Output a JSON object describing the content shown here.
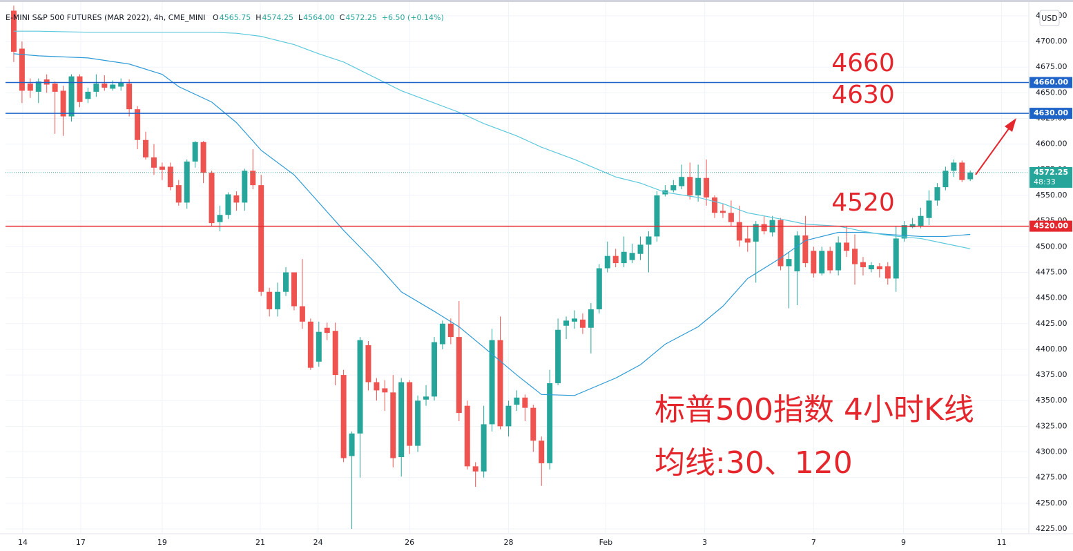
{
  "chart_data": {
    "type": "candlestick",
    "symbol": "E-MINI S&P 500 FUTURES (MAR 2022), 4h, CME_MINI",
    "ohlc_keys": [
      "O",
      "H",
      "L",
      "C"
    ],
    "last_value_labels": [
      "4565.75",
      "4574.25",
      "4564.00",
      "4572.25"
    ],
    "change": "+6.50 (+0.14%)",
    "currency": "USD",
    "countdown": "48:33",
    "up_color": "#26a69a",
    "down_color": "#ef5350",
    "grid": true,
    "xlim": [
      -1.0,
      123.1
    ],
    "ylim": [
      4220.3,
      4738.4
    ],
    "xticks": [
      {
        "value": 1.09,
        "label": "14"
      },
      {
        "value": 8.12,
        "label": "17"
      },
      {
        "value": 18.0,
        "label": "19"
      },
      {
        "value": 29.9,
        "label": "21"
      },
      {
        "value": 36.9,
        "label": "24"
      },
      {
        "value": 48.0,
        "label": "26"
      },
      {
        "value": 60.0,
        "label": "28"
      },
      {
        "value": 71.8,
        "label": "Feb"
      },
      {
        "value": 83.8,
        "label": "3"
      },
      {
        "value": 97.0,
        "label": "7"
      },
      {
        "value": 107.9,
        "label": "9"
      },
      {
        "value": 119.8,
        "label": "11"
      }
    ],
    "yticks": [
      {
        "value": 4225,
        "label": "4225.00"
      },
      {
        "value": 4250,
        "label": "4250.00"
      },
      {
        "value": 4275,
        "label": "4275.00"
      },
      {
        "value": 4300,
        "label": "4300.00"
      },
      {
        "value": 4325,
        "label": "4325.00"
      },
      {
        "value": 4350,
        "label": "4350.00"
      },
      {
        "value": 4375,
        "label": "4375.00"
      },
      {
        "value": 4400,
        "label": "4400.00"
      },
      {
        "value": 4425,
        "label": "4425.00"
      },
      {
        "value": 4450,
        "label": "4450.00"
      },
      {
        "value": 4475,
        "label": "4475.00"
      },
      {
        "value": 4500,
        "label": "4500.00"
      },
      {
        "value": 4525,
        "label": "4525.00"
      },
      {
        "value": 4550,
        "label": "4550.00"
      },
      {
        "value": 4575,
        "label": "4575.00"
      },
      {
        "value": 4600,
        "label": "4600.00"
      },
      {
        "value": 4625,
        "label": "4625.00"
      },
      {
        "value": 4650,
        "label": "4650.00"
      },
      {
        "value": 4675,
        "label": "4675.00"
      },
      {
        "value": 4700,
        "label": "4700.00"
      },
      {
        "value": 4725,
        "label": "4725.00"
      }
    ],
    "candles": {
      "open": [
        4730,
        4693,
        4659,
        4651,
        4663,
        4659,
        4652,
        4627,
        4666,
        4644,
        4651,
        4659,
        4654,
        4656,
        4659,
        4634,
        4604,
        4587,
        4578,
        4578,
        4560,
        4543,
        4583,
        4602,
        4572,
        4524,
        4531,
        4550,
        4543,
        4574,
        4560,
        4456,
        4439,
        4456,
        4475,
        4442,
        4427,
        4388,
        4421,
        4418,
        4375,
        4296,
        4318,
        4404,
        4368,
        4362,
        4358,
        4295,
        4368,
        4306,
        4351,
        4354,
        4405,
        4425,
        4412,
        4345,
        4286,
        4281,
        4327,
        4409,
        4325,
        4346,
        4353,
        4343,
        4311,
        4289,
        4367,
        4423,
        4427,
        4429,
        4421,
        4439,
        4479,
        4491,
        4484,
        4487,
        4493,
        4502,
        4510,
        4551,
        4555,
        4559,
        4568,
        4550,
        4567,
        4548,
        4535,
        4533,
        4524,
        4508,
        4505,
        4522,
        4514,
        4526,
        4481,
        4476,
        4511,
        4496,
        4474,
        4496,
        4477,
        4504,
        4498,
        4485,
        4478,
        4481,
        4481,
        4469,
        4508,
        4519,
        4520,
        4528,
        4545,
        4558,
        4574,
        4582,
        4565.75
      ],
      "high": [
        4735,
        4700,
        4664,
        4664,
        4668,
        4661,
        4657,
        4668,
        4668,
        4655,
        4668,
        4667,
        4662,
        4664,
        4663,
        4637,
        4612,
        4600,
        4582,
        4582,
        4565,
        4585,
        4603,
        4603,
        4574,
        4540,
        4553,
        4554,
        4576,
        4595,
        4570,
        4460,
        4465,
        4480,
        4475,
        4488,
        4430,
        4427,
        4426,
        4426,
        4380,
        4320,
        4412,
        4408,
        4372,
        4370,
        4375,
        4372,
        4370,
        4355,
        4365,
        4412,
        4428,
        4430,
        4447,
        4350,
        4290,
        4345,
        4420,
        4432,
        4350,
        4360,
        4356,
        4346,
        4315,
        4380,
        4430,
        4432,
        4438,
        4435,
        4445,
        4483,
        4505,
        4498,
        4510,
        4503,
        4510,
        4515,
        4554,
        4560,
        4565,
        4580,
        4582,
        4580,
        4585,
        4550,
        4542,
        4545,
        4540,
        4520,
        4525,
        4530,
        4530,
        4528,
        4495,
        4515,
        4530,
        4500,
        4500,
        4500,
        4510,
        4520,
        4512,
        4490,
        4485,
        4484,
        4485,
        4520,
        4525,
        4528,
        4538,
        4555,
        4562,
        4578,
        4585,
        4584,
        4574.25
      ],
      "low": [
        4680,
        4640,
        4645,
        4640,
        4650,
        4610,
        4608,
        4622,
        4636,
        4640,
        4646,
        4652,
        4652,
        4652,
        4627,
        4595,
        4585,
        4570,
        4565,
        4555,
        4540,
        4537,
        4577,
        4562,
        4520,
        4515,
        4527,
        4535,
        4535,
        4556,
        4452,
        4432,
        4432,
        4452,
        4438,
        4420,
        4380,
        4383,
        4409,
        4365,
        4290,
        4225,
        4275,
        4360,
        4350,
        4340,
        4285,
        4276,
        4298,
        4300,
        4345,
        4350,
        4400,
        4405,
        4330,
        4283,
        4266,
        4275,
        4320,
        4322,
        4315,
        4340,
        4330,
        4300,
        4267,
        4283,
        4365,
        4410,
        4420,
        4415,
        4396,
        4435,
        4475,
        4480,
        4480,
        4484,
        4487,
        4475,
        4505,
        4549,
        4553,
        4556,
        4546,
        4544,
        4540,
        4528,
        4528,
        4520,
        4500,
        4495,
        4465,
        4512,
        4510,
        4477,
        4440,
        4443,
        4480,
        4470,
        4472,
        4474,
        4472,
        4490,
        4463,
        4472,
        4475,
        4470,
        4463,
        4456,
        4505,
        4518,
        4518,
        4521,
        4540,
        4555,
        4568,
        4563,
        4564
      ],
      "close": [
        4690,
        4652,
        4652,
        4661,
        4658,
        4651,
        4627,
        4666,
        4641,
        4651,
        4659,
        4655,
        4658,
        4660,
        4634,
        4604,
        4587,
        4577,
        4575,
        4558,
        4543,
        4583,
        4602,
        4572,
        4523,
        4531,
        4551,
        4543,
        4574,
        4560,
        4456,
        4439,
        4456,
        4475,
        4442,
        4427,
        4382,
        4417,
        4416,
        4375,
        4294,
        4318,
        4409,
        4368,
        4360,
        4358,
        4294,
        4368,
        4306,
        4350,
        4354,
        4407,
        4425,
        4412,
        4338,
        4286,
        4281,
        4327,
        4409,
        4325,
        4345,
        4353,
        4343,
        4311,
        4289,
        4367,
        4419,
        4428,
        4430,
        4421,
        4439,
        4479,
        4491,
        4484,
        4495,
        4494,
        4502,
        4510,
        4550,
        4555,
        4560,
        4568,
        4550,
        4567,
        4548,
        4533,
        4533,
        4524,
        4506,
        4504,
        4522,
        4515,
        4526,
        4481,
        4488,
        4511,
        4484,
        4474,
        4496,
        4477,
        4504,
        4496,
        4483,
        4480,
        4482,
        4478,
        4469,
        4508,
        4521,
        4522,
        4530,
        4545,
        4558,
        4574,
        4582,
        4565,
        4572.25
      ]
    },
    "ma": [
      {
        "color": "#2e9bd6",
        "x": [
          0,
          3,
          9,
          14,
          18,
          20,
          24,
          27,
          30,
          34,
          37,
          40,
          44,
          47,
          51,
          54,
          57,
          61,
          64,
          68,
          73,
          76,
          79,
          83,
          86,
          89,
          93,
          96,
          100,
          103,
          106,
          110,
          113,
          116
        ],
        "values": [
          4688,
          4686,
          4684,
          4678,
          4668,
          4656,
          4641,
          4621,
          4594,
          4570,
          4543,
          4516,
          4483,
          4456,
          4437,
          4422,
          4402,
          4375,
          4356,
          4355,
          4372,
          4385,
          4405,
          4422,
          4442,
          4469,
          4489,
          4506,
          4514,
          4514,
          4512,
          4510,
          4510,
          4512
        ]
      },
      {
        "color": "#5bc8dc",
        "x": [
          0,
          3,
          9,
          14,
          18,
          20,
          24,
          27,
          30,
          34,
          37,
          40,
          44,
          47,
          51,
          54,
          57,
          61,
          64,
          68,
          73,
          76,
          79,
          83,
          86,
          89,
          93,
          96,
          100,
          103,
          106,
          110,
          113,
          116
        ],
        "values": [
          4710,
          4710,
          4709,
          4709,
          4709,
          4709,
          4709,
          4708,
          4705,
          4697,
          4688,
          4680,
          4664,
          4652,
          4640,
          4631,
          4620,
          4608,
          4597,
          4585,
          4568,
          4562,
          4553,
          4548,
          4542,
          4533,
          4527,
          4522,
          4520,
          4515,
          4511,
          4508,
          4503,
          4498
        ]
      }
    ],
    "hlines": [
      {
        "value": 4660,
        "label": "4660.00",
        "color": "#1e63c8"
      },
      {
        "value": 4630,
        "label": "4630.00",
        "color": "#1e63c8"
      },
      {
        "value": 4520,
        "label": "4520.00",
        "color": "#e5262c"
      }
    ],
    "annotations": [
      "4660",
      "4630",
      "4520",
      "标普500指数 4小时K线",
      "均线:30、120"
    ]
  }
}
